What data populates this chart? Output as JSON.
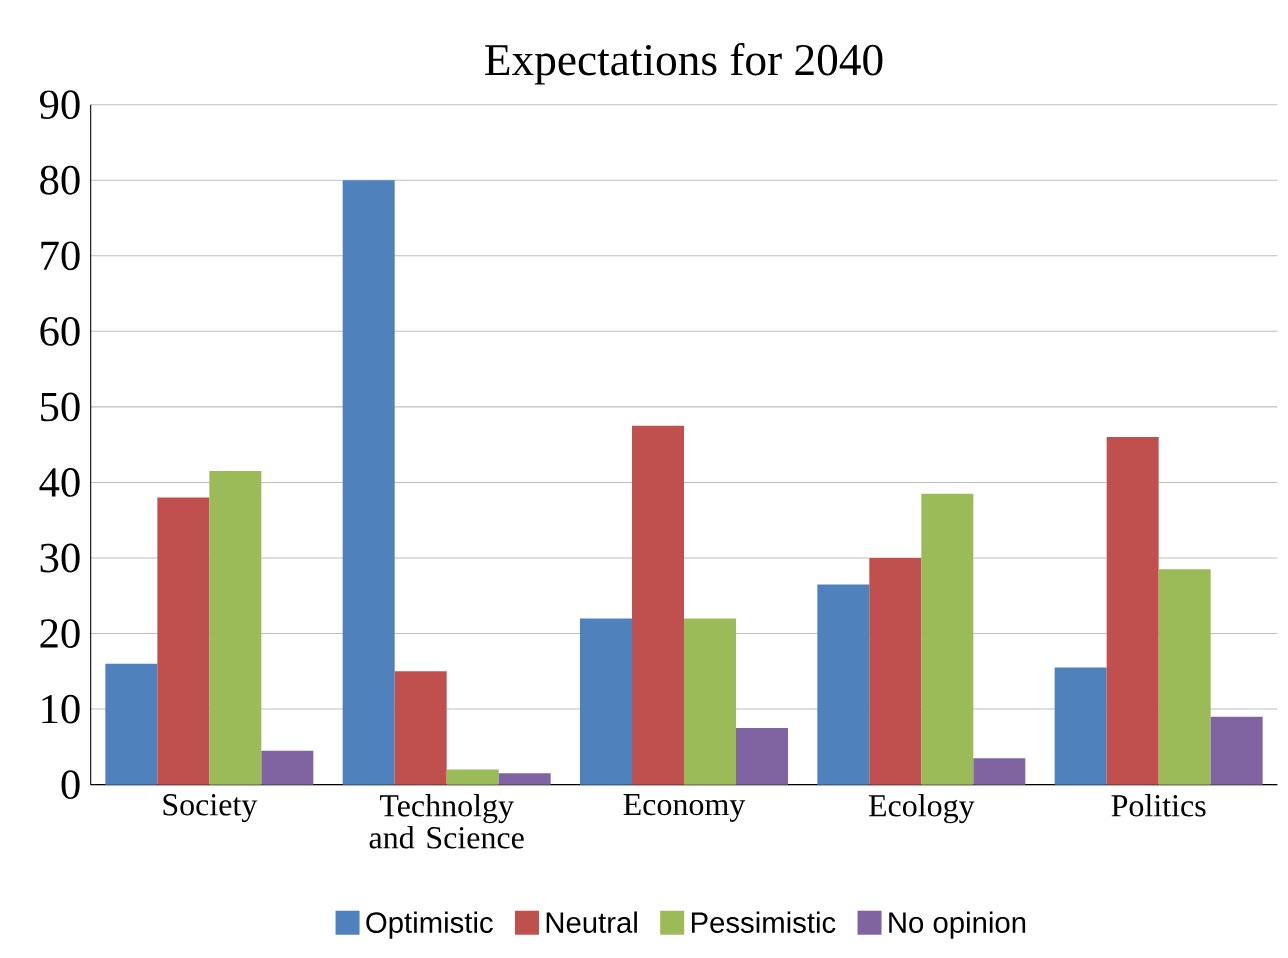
{
  "chart_data": {
    "type": "bar",
    "title": "Expectations for 2040",
    "categories": [
      "Society",
      "Technolgy and Science",
      "Economy",
      "Ecology",
      "Politics"
    ],
    "series": [
      {
        "name": "Optimistic",
        "color": "#4f81bd",
        "values": [
          16,
          80,
          22,
          26.5,
          15.5
        ]
      },
      {
        "name": "Neutral",
        "color": "#c0504d",
        "values": [
          38,
          15,
          47.5,
          30,
          46
        ]
      },
      {
        "name": "Pessimistic",
        "color": "#9bbb59",
        "values": [
          41.5,
          2,
          22,
          38.5,
          28.5
        ]
      },
      {
        "name": "No opinion",
        "color": "#8064a2",
        "values": [
          4.5,
          1.5,
          7.5,
          3.5,
          9
        ]
      }
    ],
    "ylim": [
      0,
      90
    ],
    "yticks": [
      0,
      10,
      20,
      30,
      40,
      50,
      60,
      70,
      80,
      90
    ],
    "grid": "y",
    "legend": "bottom"
  }
}
